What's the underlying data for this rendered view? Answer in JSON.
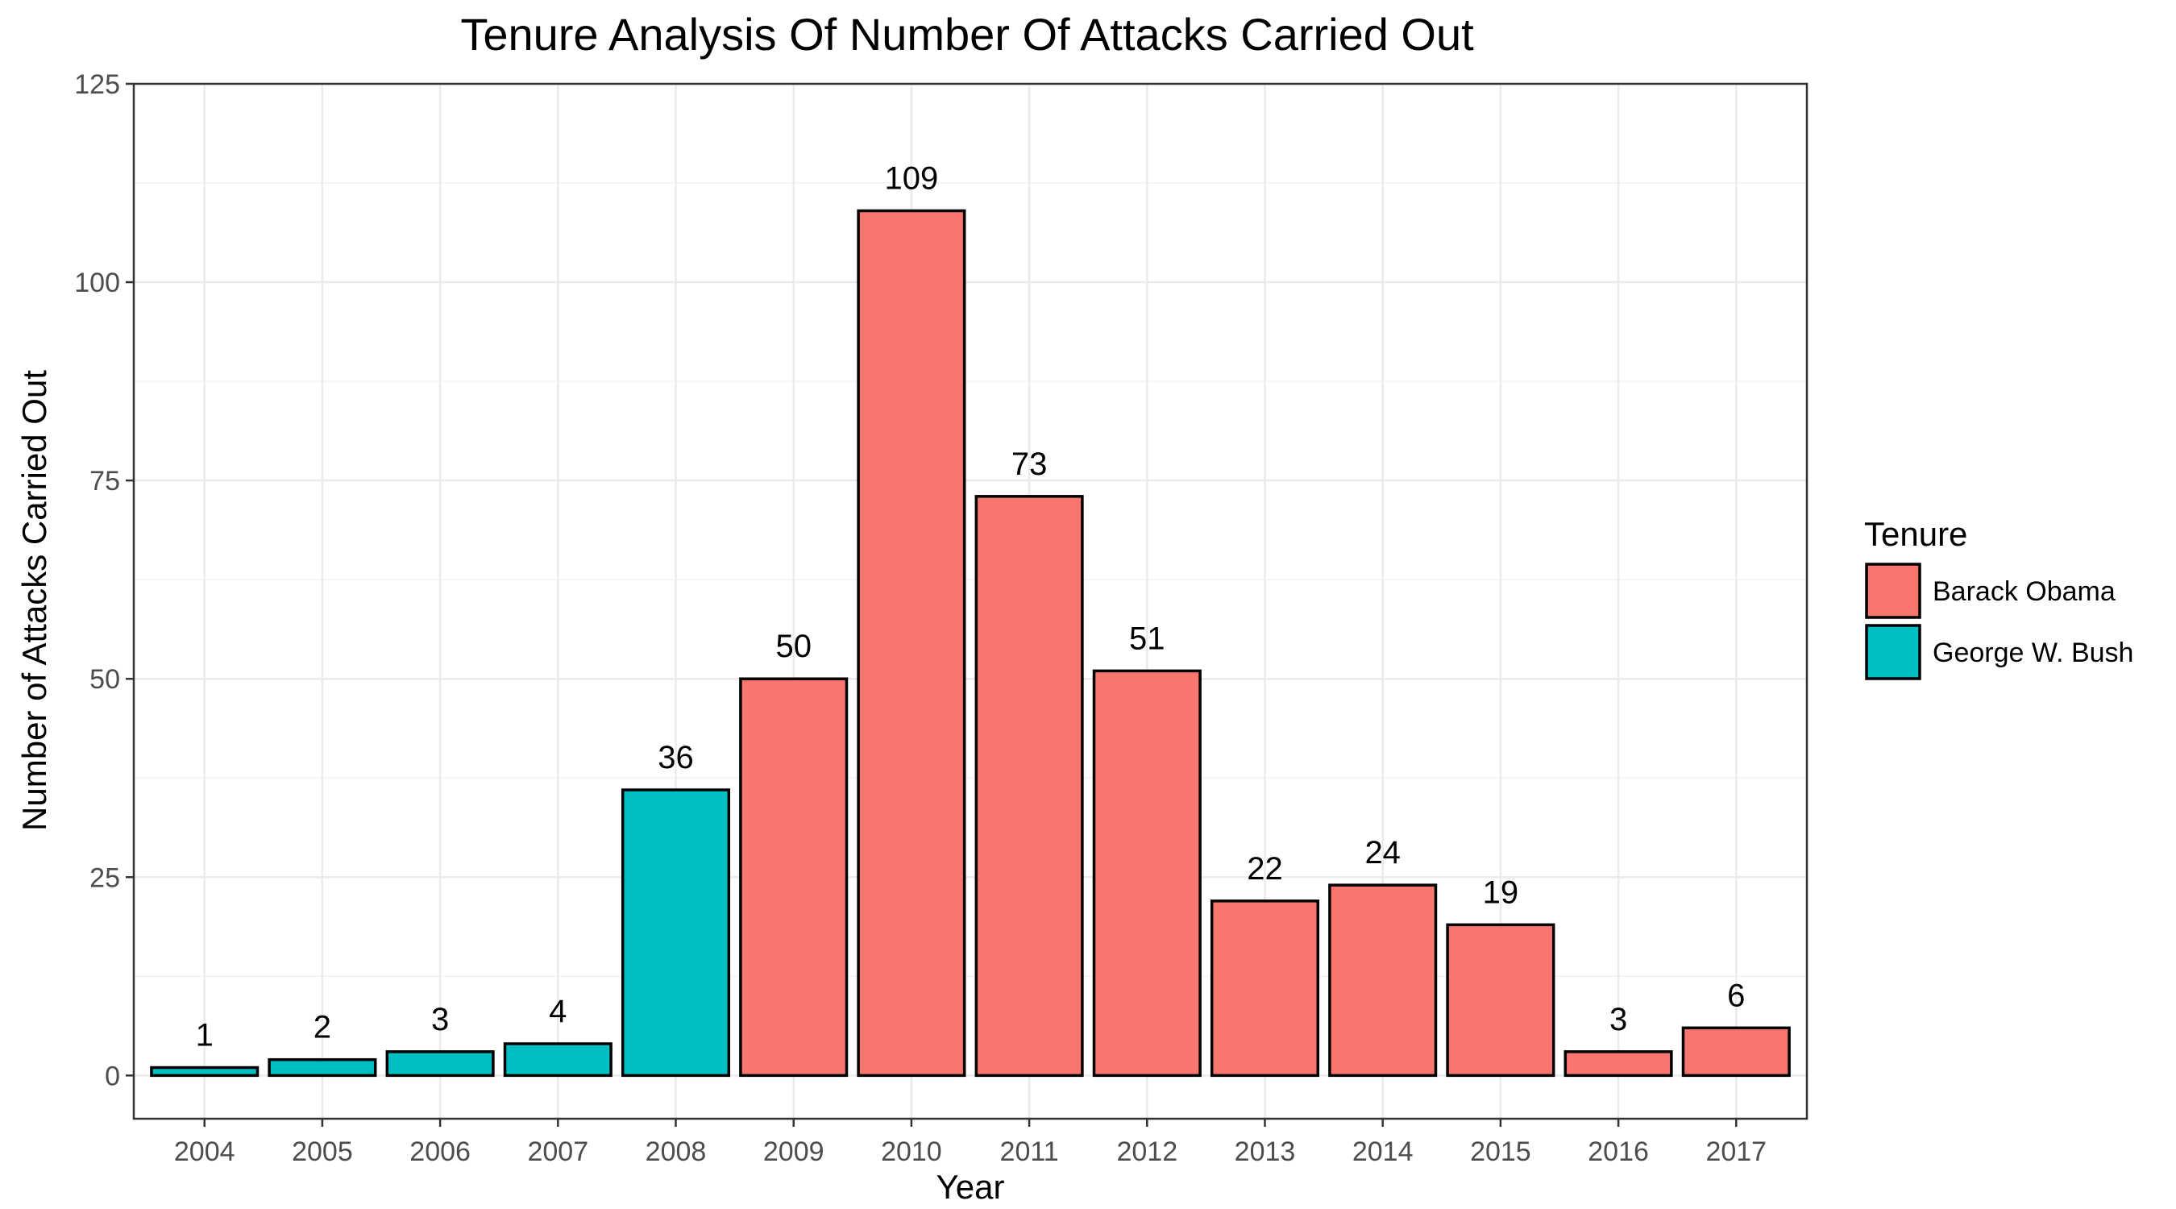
{
  "chart_data": {
    "type": "bar",
    "title": "Tenure Analysis Of Number Of Attacks Carried Out",
    "xlabel": "Year",
    "ylabel": "Number of Attacks Carried Out",
    "categories": [
      "2004",
      "2005",
      "2006",
      "2007",
      "2008",
      "2009",
      "2010",
      "2011",
      "2012",
      "2013",
      "2014",
      "2015",
      "2016",
      "2017"
    ],
    "values": [
      1,
      2,
      3,
      4,
      36,
      50,
      109,
      73,
      51,
      22,
      24,
      19,
      3,
      6
    ],
    "value_labels": [
      "1",
      "2",
      "3",
      "4",
      "36",
      "50",
      "109",
      "73",
      "51",
      "22",
      "24",
      "19",
      "3",
      "6"
    ],
    "group": [
      "George W. Bush",
      "George W. Bush",
      "George W. Bush",
      "George W. Bush",
      "George W. Bush",
      "Barack Obama",
      "Barack Obama",
      "Barack Obama",
      "Barack Obama",
      "Barack Obama",
      "Barack Obama",
      "Barack Obama",
      "Barack Obama",
      "Barack Obama"
    ],
    "ylim": [
      -5.45,
      125
    ],
    "yticks": [
      0,
      25,
      50,
      75,
      100,
      125
    ],
    "ytick_labels": [
      "0",
      "25",
      "50",
      "75",
      "100",
      "125"
    ],
    "grid": true,
    "legend": {
      "title": "Tenure",
      "placement": "right",
      "entries": [
        {
          "name": "Barack Obama",
          "color": "#f8766d"
        },
        {
          "name": "George W. Bush",
          "color": "#00bfc4"
        }
      ]
    },
    "colors": {
      "Barack Obama": "#f8766d",
      "George W. Bush": "#00bfc4",
      "bar_outline": "#000000",
      "grid": "#ebebeb",
      "panel_border": "#333333"
    }
  }
}
